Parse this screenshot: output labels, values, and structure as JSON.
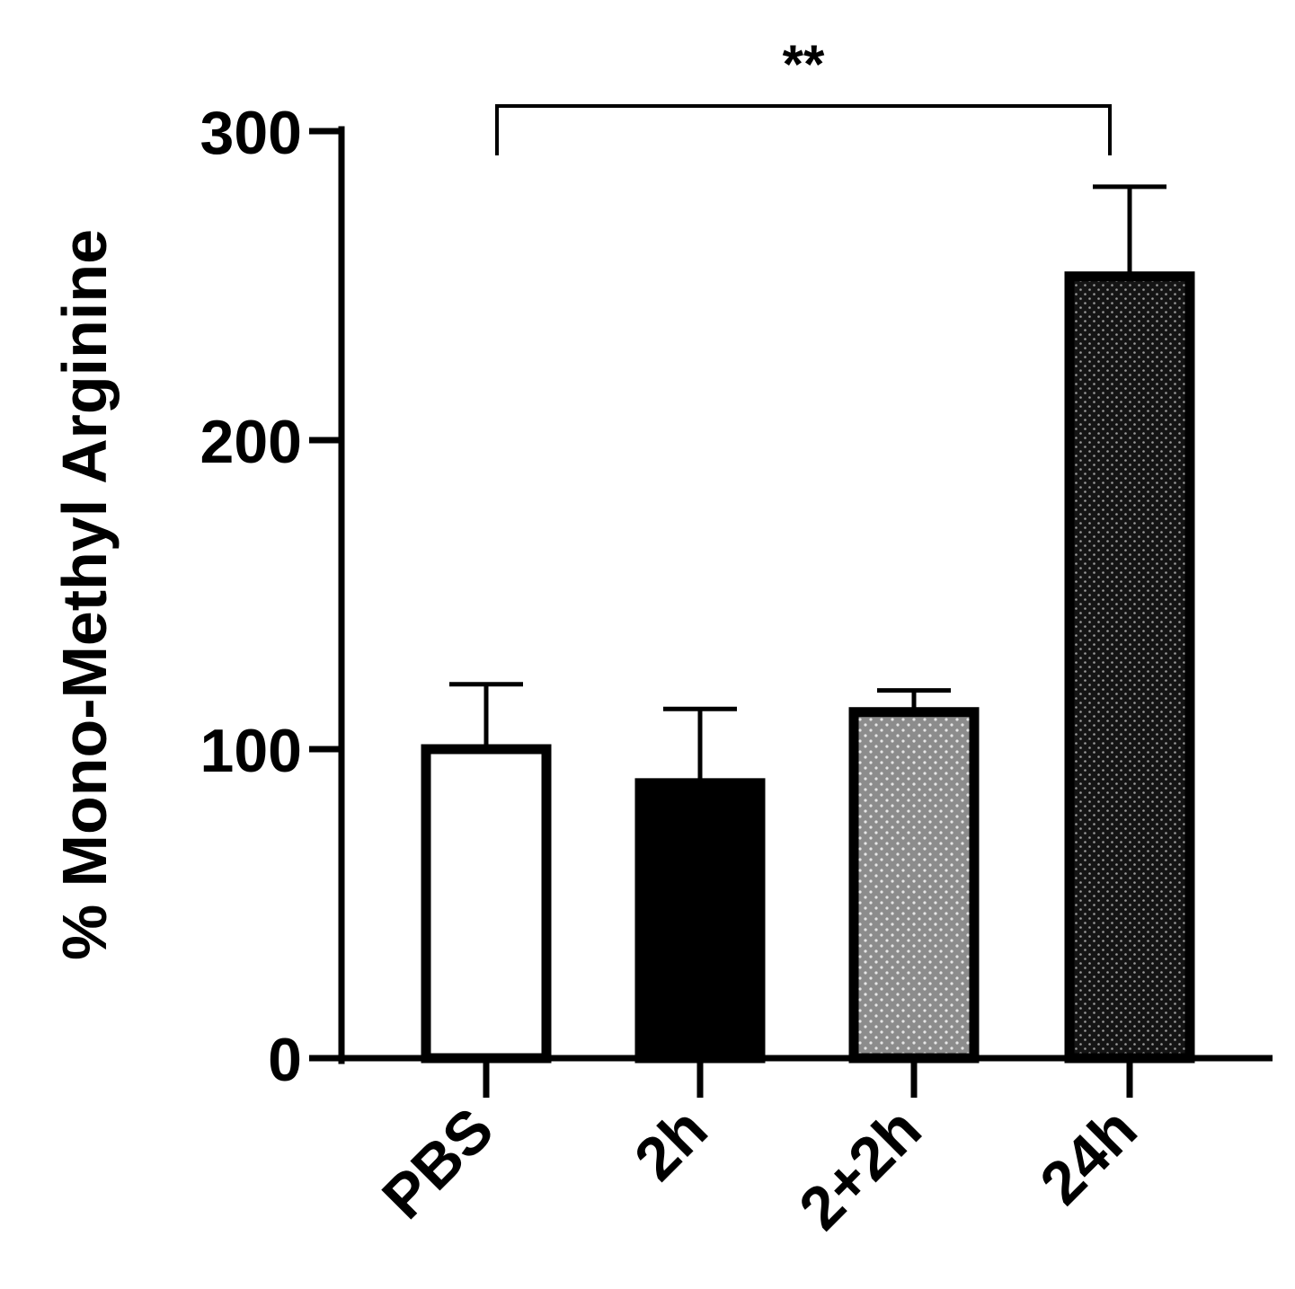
{
  "chart_data": {
    "type": "bar",
    "categories": [
      "PBS",
      "2h",
      "2+2h",
      "24h"
    ],
    "values": [
      100,
      89,
      112,
      253
    ],
    "error_upper": [
      121,
      113,
      119,
      282
    ],
    "ylabel": "% Mono-Methyl Arginine",
    "xlabel": "",
    "ylim": [
      0,
      300
    ],
    "yticks": [
      0,
      100,
      200,
      300
    ],
    "grid": false,
    "legend": "none",
    "bar_styles": [
      {
        "fill": "#ffffff",
        "pattern": "none"
      },
      {
        "fill": "#000000",
        "pattern": "none"
      },
      {
        "fill": "#8c8c8c",
        "pattern": "dots-light"
      },
      {
        "fill": "#141414",
        "pattern": "dots-dark"
      }
    ],
    "significance": [
      {
        "from": "PBS",
        "to": "24h",
        "label": "**"
      }
    ]
  }
}
